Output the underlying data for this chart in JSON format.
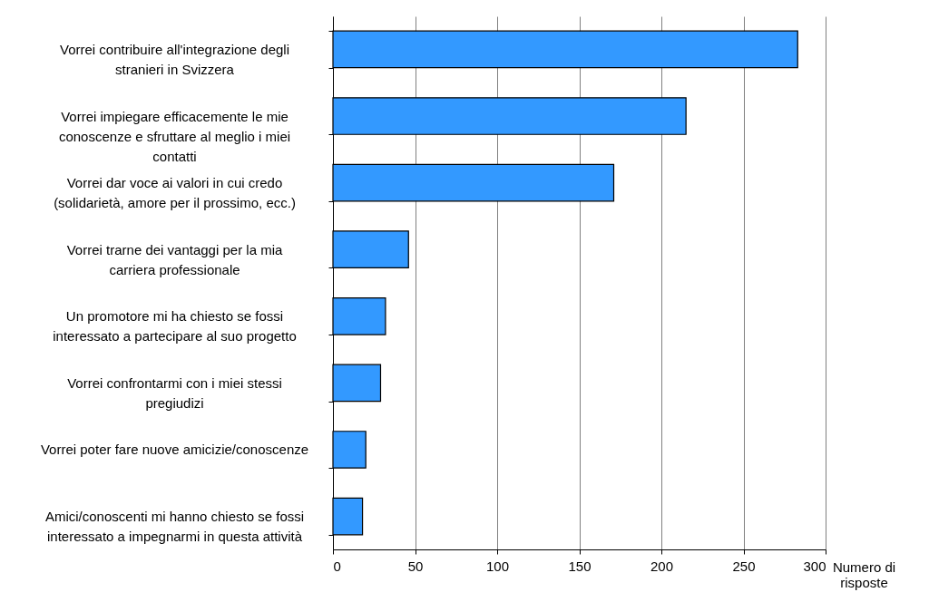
{
  "chart_data": {
    "type": "bar",
    "orientation": "horizontal",
    "categories": [
      "Vorrei contribuire all'integrazione degli stranieri in Svizzera",
      "Vorrei impiegare efficacemente le mie conoscenze e sfruttare al meglio i miei contatti",
      "Vorrei dar voce ai valori in cui credo (solidarietà, amore per il prossimo, ecc.)",
      "Vorrei trarne dei vantaggi per la mia carriera professionale",
      "Un promotore mi ha chiesto se fossi interessato a partecipare al suo progetto",
      "Vorrei confrontarmi con i miei stessi pregiudizi",
      "Vorrei poter fare nuove amicizie/conoscenze",
      "Amici/conoscenti mi hanno chiesto se fossi interessato a impegnarmi in questa attività"
    ],
    "values": [
      283,
      215,
      171,
      46,
      32,
      29,
      20,
      18
    ],
    "color": "#3399ff",
    "xlabel": "Numero di risposte",
    "xlim": [
      0,
      300
    ],
    "xticks": [
      0,
      50,
      100,
      150,
      200,
      250,
      300
    ],
    "grid": "x"
  }
}
